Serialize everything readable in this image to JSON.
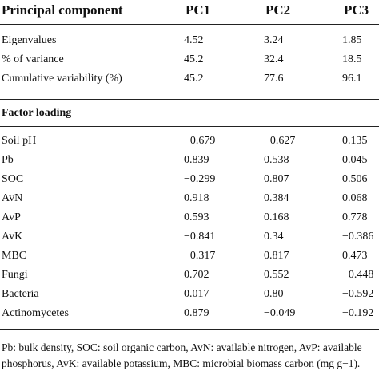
{
  "table": {
    "header": [
      "Principal component",
      "PC1",
      "PC2",
      "PC3"
    ],
    "summary_rows": [
      [
        "Eigenvalues",
        "4.52",
        "3.24",
        "1.85"
      ],
      [
        "% of variance",
        "45.2",
        "32.4",
        "18.5"
      ],
      [
        "Cumulative variability (%)",
        "45.2",
        "77.6",
        "96.1"
      ]
    ],
    "section": "Factor loading",
    "loading_rows": [
      [
        "Soil pH",
        "−0.679",
        "−0.627",
        "0.135"
      ],
      [
        "Pb",
        "0.839",
        "0.538",
        "0.045"
      ],
      [
        "SOC",
        "−0.299",
        "0.807",
        "0.506"
      ],
      [
        "AvN",
        "0.918",
        "0.384",
        "0.068"
      ],
      [
        "AvP",
        "0.593",
        "0.168",
        "0.778"
      ],
      [
        "AvK",
        "−0.841",
        "0.34",
        "−0.386"
      ],
      [
        "MBC",
        "−0.317",
        "0.817",
        "0.473"
      ],
      [
        "Fungi",
        "0.702",
        "0.552",
        "−0.448"
      ],
      [
        "Bacteria",
        "0.017",
        "0.80",
        "−0.592"
      ],
      [
        "Actinomycetes",
        "0.879",
        "−0.049",
        "−0.192"
      ]
    ],
    "footnote": "Pb: bulk density, SOC: soil organic carbon, AvN: available nitrogen, AvP: available phosphorus, AvK: available potassium, MBC: microbial biomass carbon (mg g−1)."
  }
}
